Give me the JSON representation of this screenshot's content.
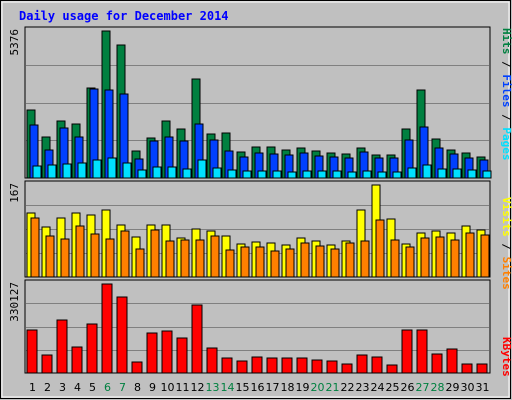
{
  "chart_data": {
    "type": "bar",
    "title": "Daily usage for December 2014",
    "days": [
      "1",
      "2",
      "3",
      "4",
      "5",
      "6",
      "7",
      "8",
      "9",
      "10",
      "11",
      "12",
      "13",
      "14",
      "15",
      "16",
      "17",
      "18",
      "19",
      "20",
      "21",
      "22",
      "23",
      "24",
      "25",
      "26",
      "27",
      "28",
      "29",
      "30",
      "31"
    ],
    "weekend_days": [
      "6",
      "7",
      "13",
      "14",
      "20",
      "21",
      "27",
      "28"
    ],
    "panels": [
      {
        "id": "hits",
        "ymax_label": "5376",
        "ymax": 5376,
        "legend": [
          "Pages",
          "Files",
          "Hits"
        ],
        "legend_colors": [
          "#00e0ff",
          "#0040ff",
          "#008040"
        ],
        "series": [
          {
            "name": "Hits",
            "color": "#008040",
            "values": [
              2500,
              1500,
              2070,
              1980,
              3300,
              5376,
              4860,
              990,
              1470,
              2100,
              1800,
              3630,
              1620,
              1650,
              960,
              1140,
              1140,
              1020,
              1110,
              990,
              930,
              870,
              1080,
              840,
              840,
              1800,
              3220,
              1440,
              1020,
              900,
              750
            ]
          },
          {
            "name": "Files",
            "color": "#0040ff",
            "values": [
              1940,
              1040,
              1830,
              1500,
              3270,
              3220,
              3070,
              690,
              1350,
              1500,
              1350,
              1960,
              1380,
              1000,
              780,
              900,
              870,
              840,
              900,
              810,
              780,
              720,
              960,
              720,
              720,
              1390,
              1850,
              1080,
              870,
              720,
              660
            ]
          },
          {
            "name": "Pages",
            "color": "#00e0ff",
            "values": [
              440,
              480,
              530,
              560,
              660,
              720,
              560,
              300,
              390,
              390,
              330,
              660,
              360,
              300,
              270,
              240,
              240,
              210,
              240,
              240,
              240,
              210,
              270,
              210,
              210,
              360,
              480,
              330,
              330,
              300,
              270
            ]
          }
        ]
      },
      {
        "id": "visits",
        "ymax_label": "167",
        "ymax": 167,
        "legend": [
          "Sites",
          "Visits"
        ],
        "legend_colors": [
          "#ff8000",
          "#ffff00"
        ],
        "series": [
          {
            "name": "Visits",
            "color": "#ffff00",
            "values": [
              116,
              90,
              108,
              116,
              112,
              121,
              95,
              73,
              95,
              95,
              71,
              88,
              84,
              75,
              60,
              64,
              62,
              58,
              71,
              65,
              58,
              66,
              121,
              167,
              105,
              60,
              80,
              84,
              80,
              92,
              85
            ]
          },
          {
            "name": "Sites",
            "color": "#ff8000",
            "values": [
              107,
              75,
              69,
              92,
              78,
              69,
              84,
              51,
              86,
              65,
              67,
              67,
              75,
              49,
              55,
              55,
              47,
              51,
              62,
              56,
              51,
              62,
              65,
              104,
              68,
              55,
              71,
              73,
              67,
              80,
              76
            ]
          }
        ]
      },
      {
        "id": "kbytes",
        "ymax_label": "330127",
        "ymax": 330127,
        "legend": [
          "KBytes"
        ],
        "legend_colors": [
          "#ff0000"
        ],
        "series": [
          {
            "name": "KBytes",
            "color": "#ff0000",
            "values": [
              158000,
              67000,
              198000,
              98000,
              180000,
              330127,
              282000,
              40000,
              150000,
              155000,
              130000,
              251000,
              92000,
              55000,
              45000,
              60000,
              57000,
              55000,
              56000,
              49000,
              45000,
              35000,
              65000,
              58000,
              30000,
              160000,
              158000,
              72000,
              90000,
              35000,
              35000
            ]
          }
        ]
      }
    ]
  }
}
